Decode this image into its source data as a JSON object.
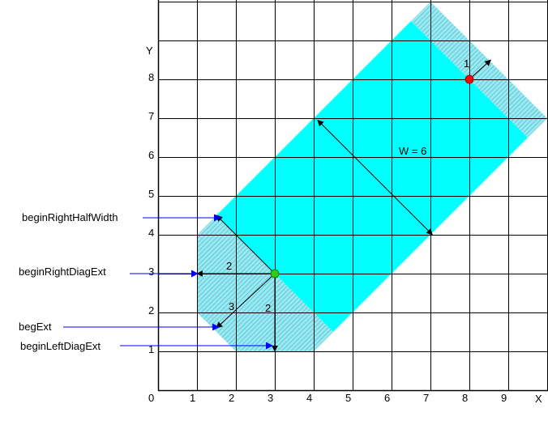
{
  "colors": {
    "band": "#00ffff",
    "hatch": "#9fe6ee",
    "hatch_line": "#38c8d8",
    "grid": "#000000",
    "arrow": "#0000ff",
    "end_point": "#ff0000",
    "begin_point": "#2ecc17"
  },
  "axes": {
    "x_label": "X",
    "y_label": "Y",
    "origin": "0",
    "x_ticks": [
      "1",
      "2",
      "3",
      "4",
      "5",
      "6",
      "7",
      "8",
      "9"
    ],
    "y_ticks": [
      "1",
      "2",
      "3",
      "4",
      "5",
      "6",
      "7",
      "8"
    ]
  },
  "labels": {
    "width": "W = 6",
    "end_vector": "1",
    "right_diag": "2",
    "begin_ext": "3",
    "left_diag": "2"
  },
  "callouts": {
    "begin_right_half_width": "beginRightHalfWidth",
    "begin_right_diag_ext": "beginRightDiagExt",
    "beg_ext": "begExt",
    "begin_left_diag_ext": "beginLeftDiagExt"
  },
  "geometry": {
    "begin_point": [
      3,
      3
    ],
    "end_point": [
      8,
      8
    ],
    "width": 6,
    "end_ext": 1,
    "begin_right_half_width": 3,
    "begin_right_diag_ext": 2,
    "begin_left_diag_ext": 2,
    "beg_ext": 3
  }
}
